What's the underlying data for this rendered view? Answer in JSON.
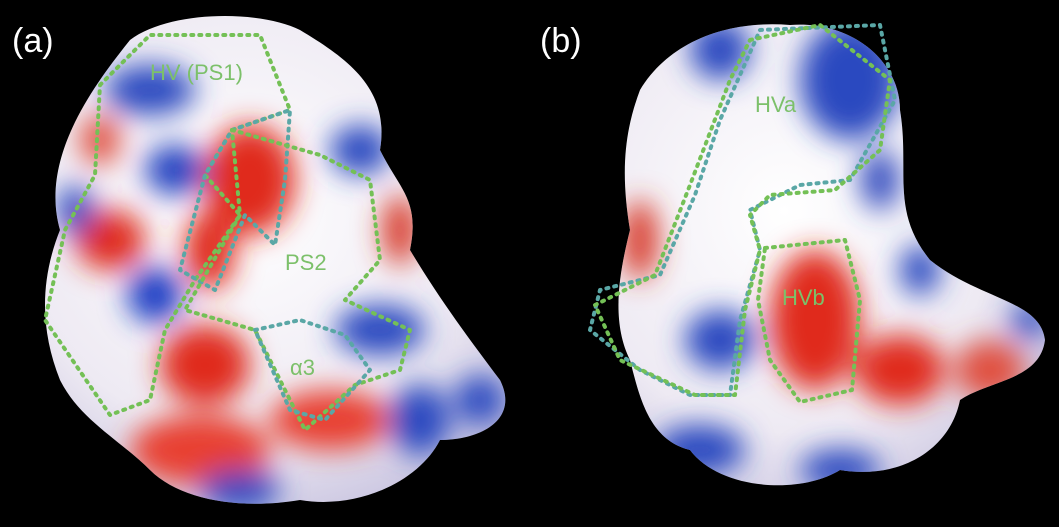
{
  "panels": [
    {
      "label": "(a)",
      "regions": [
        "HV (PS1)",
        "PS2",
        "α3"
      ]
    },
    {
      "label": "(b)",
      "regions": [
        "HVa",
        "HVb"
      ]
    }
  ]
}
